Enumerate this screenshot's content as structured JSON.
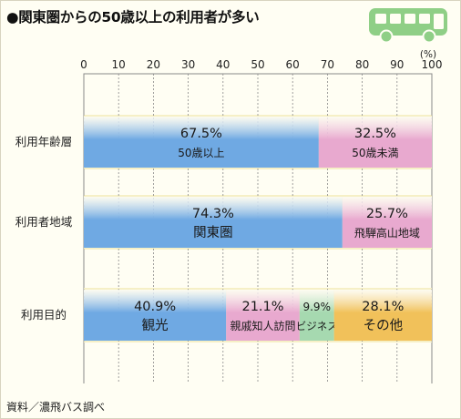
{
  "title": "●関東圏からの50歳以上の利用者が多い",
  "footer": "資料／濃飛バス調べ",
  "chart_data": {
    "type": "bar",
    "orientation": "horizontal",
    "stacked": true,
    "xlim": [
      0,
      100
    ],
    "xticks": [
      0,
      10,
      20,
      30,
      40,
      50,
      60,
      70,
      80,
      90,
      100
    ],
    "unit": "(%)",
    "grid": true,
    "categories": [
      "利用年齢層",
      "利用者地域",
      "利用目的"
    ],
    "rows": [
      {
        "category": "利用年齢層",
        "segments": [
          {
            "label": "50歳以上",
            "value": 67.5,
            "value_text": "67.5%",
            "color": "#6fa9e3"
          },
          {
            "label": "50歳未満",
            "value": 32.5,
            "value_text": "32.5%",
            "color": "#e8a9cf"
          }
        ]
      },
      {
        "category": "利用者地域",
        "segments": [
          {
            "label": "関東圏",
            "value": 74.3,
            "value_text": "74.3%",
            "color": "#6fa9e3"
          },
          {
            "label": "飛騨高山地域",
            "value": 25.7,
            "value_text": "25.7%",
            "color": "#e8a9cf"
          }
        ]
      },
      {
        "category": "利用目的",
        "segments": [
          {
            "label": "観光",
            "value": 40.9,
            "value_text": "40.9%",
            "color": "#6fa9e3"
          },
          {
            "label": "親戚知人訪問",
            "value": 21.1,
            "value_text": "21.1%",
            "color": "#e8a9cf"
          },
          {
            "label": "ビジネス",
            "value": 9.9,
            "value_text": "9.9%",
            "color": "#a6d9b0"
          },
          {
            "label": "その他",
            "value": 28.1,
            "value_text": "28.1%",
            "color": "#f1c15a"
          }
        ]
      }
    ]
  },
  "colors": {
    "plot_background": "#fffef3",
    "band": "#f6f0c6",
    "grid": "#8a8a8a",
    "bus": "#8fcf86"
  },
  "icons": {
    "bus": "bus-icon"
  }
}
